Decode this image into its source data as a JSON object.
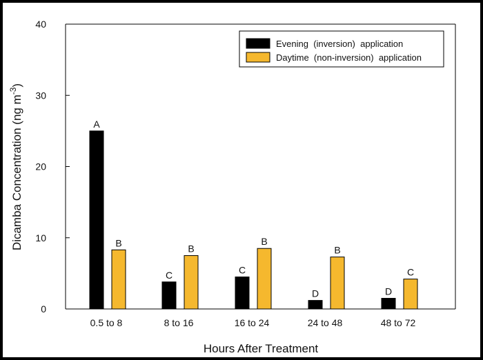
{
  "chart_data": {
    "type": "bar",
    "xlabel": "Hours After Treatment",
    "ylabel": "Dicamba Concentration (ng m-3)",
    "ylabel_main": "Dicamba Concentration (ng m",
    "ylabel_sup": "-3",
    "ylabel_close": ")",
    "ylim": [
      0,
      40
    ],
    "yticks": [
      0,
      10,
      20,
      30,
      40
    ],
    "categories": [
      "0.5 to 8",
      "8 to 16",
      "16 to 24",
      "24 to 48",
      "48 to 72"
    ],
    "series": [
      {
        "name": "Evening  (inversion)  application",
        "color": "#000000",
        "values": [
          25.0,
          3.8,
          4.5,
          1.2,
          1.5
        ],
        "labels": [
          "A",
          "C",
          "C",
          "D",
          "D"
        ]
      },
      {
        "name": "Daytime  (non-inversion)  application",
        "color": "#f5b82e",
        "values": [
          8.3,
          7.5,
          8.5,
          7.3,
          4.2
        ],
        "labels": [
          "B",
          "B",
          "B",
          "B",
          "C"
        ]
      }
    ],
    "legend_position": "top-right",
    "grid": false
  }
}
